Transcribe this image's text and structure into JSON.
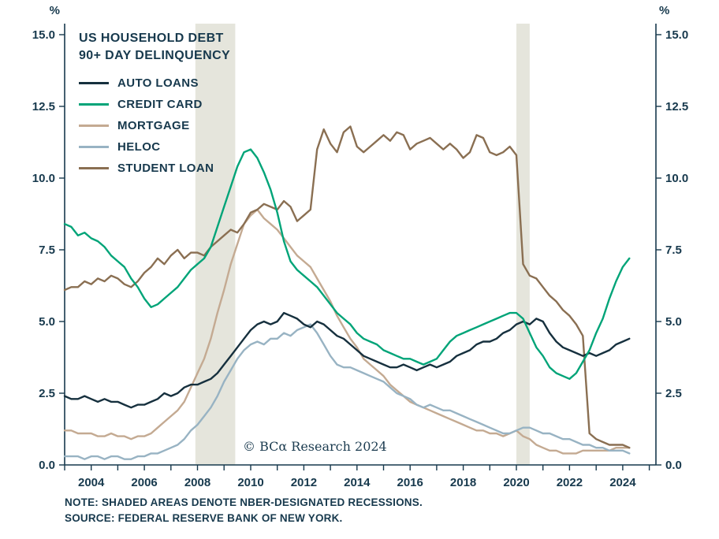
{
  "chart_data": {
    "type": "line",
    "title_lines": [
      "US HOUSEHOLD DEBT",
      "90+ DAY DELINQUENCY"
    ],
    "y_unit": "%",
    "xlim": [
      2003.0,
      2025.25
    ],
    "ylim": [
      0,
      15
    ],
    "x_start": 2003.0,
    "x_step": 0.25,
    "x_ticks": [
      2004,
      2006,
      2008,
      2010,
      2012,
      2014,
      2016,
      2018,
      2020,
      2022,
      2024
    ],
    "y_ticks": [
      0.0,
      2.5,
      5.0,
      7.5,
      10.0,
      12.5,
      15.0
    ],
    "recessions": [
      [
        2007.92,
        2009.42
      ],
      [
        2020.0,
        2020.5
      ]
    ],
    "colors": {
      "axis": "#17394d",
      "text": "#17394d",
      "recession": "#e5e5dc"
    },
    "series": [
      {
        "name": "AUTO LOANS",
        "color": "#16303e",
        "values": [
          2.4,
          2.3,
          2.3,
          2.4,
          2.3,
          2.2,
          2.3,
          2.2,
          2.2,
          2.1,
          2.0,
          2.1,
          2.1,
          2.2,
          2.3,
          2.5,
          2.4,
          2.5,
          2.7,
          2.8,
          2.8,
          2.9,
          3.0,
          3.2,
          3.5,
          3.8,
          4.1,
          4.4,
          4.7,
          4.9,
          5.0,
          4.9,
          5.0,
          5.3,
          5.2,
          5.1,
          4.9,
          4.8,
          5.0,
          4.9,
          4.7,
          4.5,
          4.4,
          4.2,
          4.0,
          3.8,
          3.7,
          3.6,
          3.5,
          3.4,
          3.4,
          3.5,
          3.4,
          3.3,
          3.4,
          3.5,
          3.4,
          3.5,
          3.6,
          3.8,
          3.9,
          4.0,
          4.2,
          4.3,
          4.3,
          4.4,
          4.6,
          4.7,
          4.9,
          5.0,
          4.9,
          5.1,
          5.0,
          4.6,
          4.3,
          4.1,
          4.0,
          3.9,
          3.8,
          3.9,
          3.8,
          3.9,
          4.0,
          4.2,
          4.3,
          4.4
        ]
      },
      {
        "name": "CREDIT CARD",
        "color": "#00a478",
        "values": [
          8.4,
          8.3,
          8.0,
          8.1,
          7.9,
          7.8,
          7.6,
          7.3,
          7.1,
          6.9,
          6.5,
          6.2,
          5.8,
          5.5,
          5.6,
          5.8,
          6.0,
          6.2,
          6.5,
          6.8,
          7.0,
          7.2,
          7.6,
          8.3,
          9.0,
          9.7,
          10.4,
          10.9,
          11.0,
          10.7,
          10.2,
          9.6,
          8.8,
          7.8,
          7.1,
          6.8,
          6.6,
          6.4,
          6.2,
          5.9,
          5.6,
          5.3,
          5.1,
          4.9,
          4.6,
          4.4,
          4.3,
          4.2,
          4.0,
          3.9,
          3.8,
          3.7,
          3.7,
          3.6,
          3.5,
          3.6,
          3.7,
          4.0,
          4.3,
          4.5,
          4.6,
          4.7,
          4.8,
          4.9,
          5.0,
          5.1,
          5.2,
          5.3,
          5.3,
          5.1,
          4.6,
          4.1,
          3.8,
          3.4,
          3.2,
          3.1,
          3.0,
          3.2,
          3.6,
          4.0,
          4.6,
          5.1,
          5.8,
          6.4,
          6.9,
          7.2
        ]
      },
      {
        "name": "MORTGAGE",
        "color": "#c4aa92",
        "values": [
          1.2,
          1.2,
          1.1,
          1.1,
          1.1,
          1.0,
          1.0,
          1.1,
          1.0,
          1.0,
          0.9,
          1.0,
          1.0,
          1.1,
          1.3,
          1.5,
          1.7,
          1.9,
          2.2,
          2.7,
          3.2,
          3.7,
          4.4,
          5.3,
          6.1,
          7.0,
          7.7,
          8.4,
          8.7,
          8.9,
          8.6,
          8.4,
          8.2,
          7.9,
          7.6,
          7.3,
          7.1,
          6.9,
          6.5,
          6.1,
          5.7,
          5.2,
          4.8,
          4.4,
          4.1,
          3.7,
          3.5,
          3.3,
          3.1,
          2.8,
          2.6,
          2.4,
          2.2,
          2.1,
          2.0,
          1.9,
          1.8,
          1.7,
          1.6,
          1.5,
          1.4,
          1.3,
          1.2,
          1.2,
          1.1,
          1.1,
          1.0,
          1.1,
          1.2,
          1.0,
          0.9,
          0.7,
          0.6,
          0.5,
          0.5,
          0.4,
          0.4,
          0.4,
          0.5,
          0.5,
          0.5,
          0.5,
          0.5,
          0.6,
          0.6,
          0.6
        ]
      },
      {
        "name": "HELOC",
        "color": "#98b3c3",
        "values": [
          0.3,
          0.3,
          0.3,
          0.2,
          0.3,
          0.3,
          0.2,
          0.3,
          0.3,
          0.2,
          0.2,
          0.3,
          0.3,
          0.4,
          0.4,
          0.5,
          0.6,
          0.7,
          0.9,
          1.2,
          1.4,
          1.7,
          2.0,
          2.4,
          2.9,
          3.3,
          3.7,
          4.0,
          4.2,
          4.3,
          4.2,
          4.4,
          4.4,
          4.6,
          4.5,
          4.7,
          4.8,
          4.9,
          4.6,
          4.2,
          3.8,
          3.5,
          3.4,
          3.4,
          3.3,
          3.2,
          3.1,
          3.0,
          2.9,
          2.7,
          2.5,
          2.4,
          2.3,
          2.1,
          2.0,
          2.1,
          2.0,
          1.9,
          1.9,
          1.8,
          1.7,
          1.6,
          1.5,
          1.4,
          1.3,
          1.2,
          1.1,
          1.1,
          1.2,
          1.3,
          1.3,
          1.2,
          1.1,
          1.1,
          1.0,
          0.9,
          0.9,
          0.8,
          0.7,
          0.7,
          0.6,
          0.6,
          0.5,
          0.5,
          0.5,
          0.4
        ]
      },
      {
        "name": "STUDENT LOAN",
        "color": "#8a6f52",
        "values": [
          6.1,
          6.2,
          6.2,
          6.4,
          6.3,
          6.5,
          6.4,
          6.6,
          6.5,
          6.3,
          6.2,
          6.4,
          6.7,
          6.9,
          7.2,
          7.0,
          7.3,
          7.5,
          7.2,
          7.4,
          7.4,
          7.3,
          7.6,
          7.8,
          8.0,
          8.2,
          8.1,
          8.4,
          8.8,
          8.9,
          9.1,
          9.0,
          8.9,
          9.2,
          9.0,
          8.5,
          8.7,
          8.9,
          11.0,
          11.7,
          11.2,
          10.9,
          11.6,
          11.8,
          11.1,
          10.9,
          11.1,
          11.3,
          11.5,
          11.3,
          11.6,
          11.5,
          11.0,
          11.2,
          11.3,
          11.4,
          11.2,
          11.0,
          11.2,
          11.0,
          10.7,
          10.9,
          11.5,
          11.4,
          10.9,
          10.8,
          10.9,
          11.1,
          10.8,
          7.0,
          6.6,
          6.5,
          6.2,
          5.9,
          5.7,
          5.4,
          5.2,
          4.9,
          4.5,
          1.1,
          0.9,
          0.8,
          0.7,
          0.7,
          0.7,
          0.6
        ]
      }
    ],
    "watermark": "© BCα Research 2024",
    "notes": [
      "NOTE: SHADED AREAS DENOTE NBER-DESIGNATED RECESSIONS.",
      "SOURCE: FEDERAL RESERVE BANK OF NEW YORK."
    ]
  }
}
